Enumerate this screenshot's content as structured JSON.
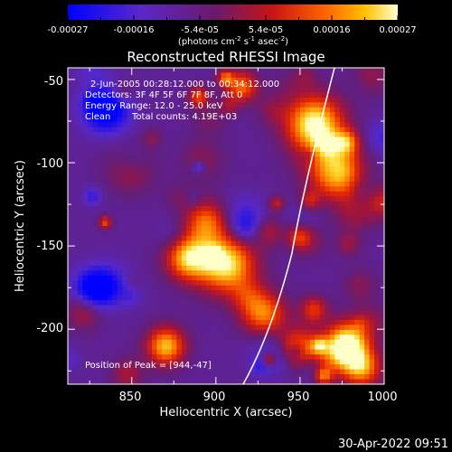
{
  "colorbar": {
    "ticks": [
      "-0.00027",
      "-0.00016",
      "-5.4e-05",
      "5.4e-05",
      "0.00016",
      "0.00027"
    ],
    "units_main": "(photons cm",
    "units_sup1": "-2",
    "units_mid": " s",
    "units_sup2": "-1",
    "units_mid2": " asec",
    "units_sup3": "-2",
    "units_end": ")"
  },
  "chart_data": {
    "type": "heatmap",
    "title": "Reconstructed RHESSI Image",
    "xlabel": "Heliocentric X (arcsec)",
    "ylabel": "Heliocentric Y (arcsec)",
    "xlim": [
      812,
      1000
    ],
    "ylim": [
      -233,
      -43
    ],
    "xticks": [
      "850",
      "900",
      "950",
      "1000"
    ],
    "yticks": [
      "-50",
      "-100",
      "-150",
      "-200"
    ],
    "color_range": [
      -0.00027,
      0.00027
    ],
    "colors": {
      "low": "#0000ff",
      "mid": "#ff2000",
      "high": "#ffffb0"
    },
    "annotations": [
      "2-Jun-2005 00:28:12.000 to 00:34:12.000",
      "Detectors: 3F 4F 5F 6F 7F 8F, Att 0",
      "Energy Range: 12.0 - 25.0 keV",
      "Clean",
      "Total counts: 4.19E+03",
      "Position of Peak = [944,-47]"
    ],
    "limb_arc": true
  },
  "footer": {
    "timestamp": "30-Apr-2022 09:51"
  }
}
